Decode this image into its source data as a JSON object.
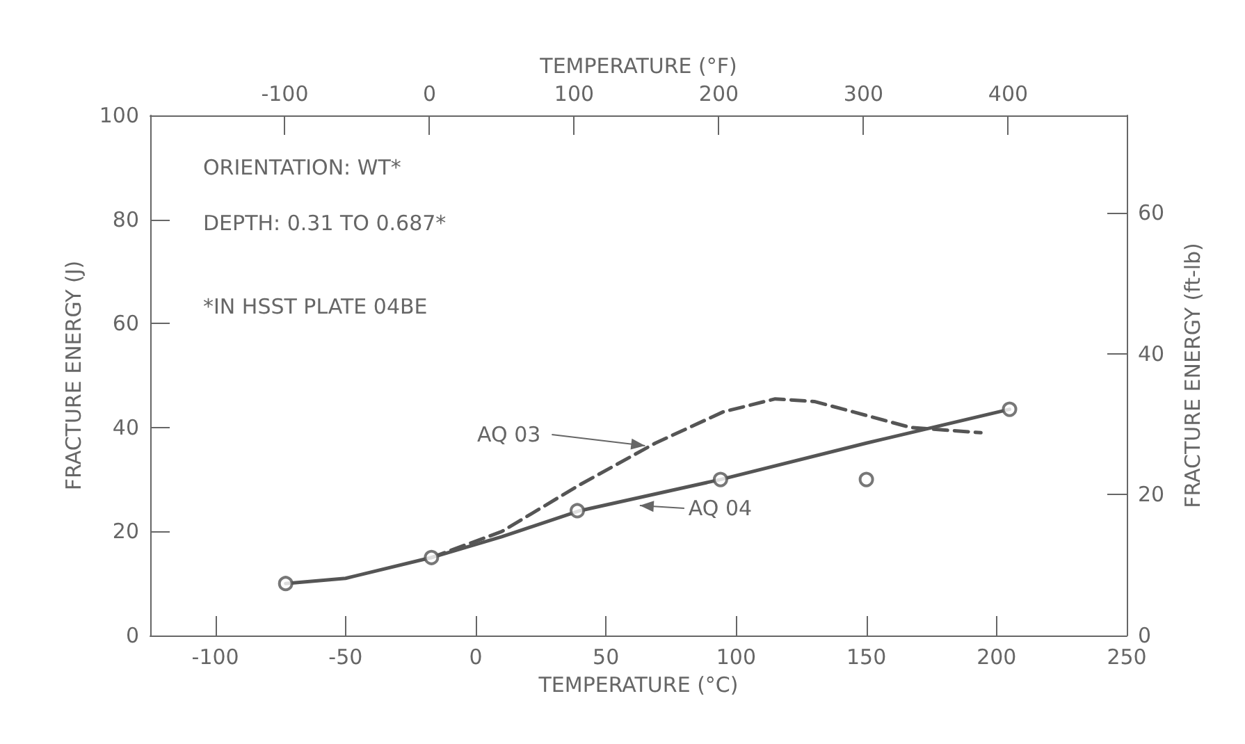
{
  "chart_data": {
    "type": "line",
    "xlabel": "TEMPERATURE (°C)",
    "x2label": "TEMPERATURE (°F)",
    "ylabel": "FRACTURE ENERGY (J)",
    "y2label": "FRACTURE ENERGY (ft-lb)",
    "xlim": [
      -125,
      250
    ],
    "xticks": [
      -100,
      -50,
      0,
      50,
      100,
      150,
      200,
      250
    ],
    "x2lim": [
      -193,
      482
    ],
    "x2ticks": [
      -100,
      0,
      100,
      200,
      300,
      400
    ],
    "ylim": [
      0,
      100
    ],
    "yticks": [
      0,
      20,
      40,
      60,
      80,
      100
    ],
    "y2lim": [
      0,
      73.8
    ],
    "y2ticks": [
      0,
      20,
      40,
      60
    ],
    "grid": false,
    "series": [
      {
        "color": "#555555",
        "line_style": "dashed",
        "marker": "none",
        "x": [
          -17,
          10,
          40,
          69,
          95,
          115,
          130,
          145,
          167,
          194
        ],
        "values": [
          15,
          20,
          29,
          37,
          43,
          45.5,
          45,
          43,
          40,
          39
        ]
      },
      {
        "color": "#555555",
        "line_style": "solid",
        "marker": "none",
        "x": [
          -73,
          -50,
          -17,
          10,
          40,
          94,
          150,
          205
        ],
        "values": [
          10,
          11,
          15,
          19,
          24,
          30,
          37,
          43.5
        ]
      },
      {
        "type": "scatter",
        "color": "#555555",
        "marker": "circle",
        "x": [
          -73,
          -17,
          39,
          94,
          150,
          205
        ],
        "values": [
          10,
          15,
          24,
          30,
          30,
          43.5
        ]
      }
    ],
    "annotations": [
      "ORIENTATION: WT*",
      "DEPTH: 0.31 TO 0.687*",
      "*IN HSST PLATE 04BE",
      {
        "text": "AQ 03",
        "x": 65,
        "y": 36.5
      },
      {
        "text": "AQ 04",
        "x": 63,
        "y": 25
      }
    ]
  }
}
